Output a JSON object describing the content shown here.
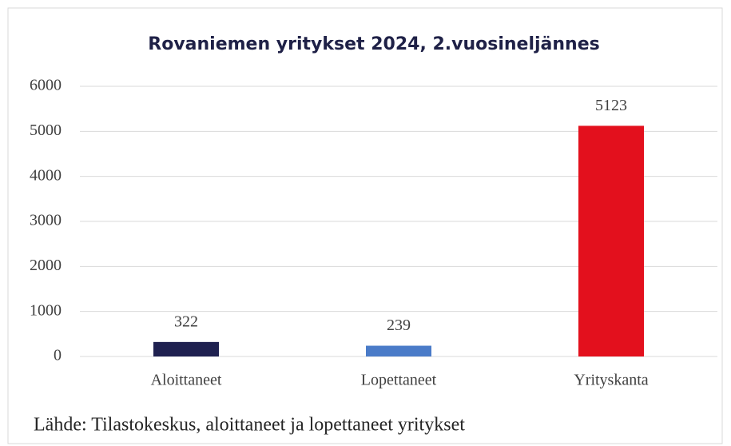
{
  "chart_data": {
    "type": "bar",
    "title": "Rovaniemen yritykset 2024, 2.vuosineljännes",
    "categories": [
      "Aloittaneet",
      "Lopettaneet",
      "Yrityskanta"
    ],
    "values": [
      322,
      239,
      5123
    ],
    "colors": [
      "#1f2150",
      "#4a7bc8",
      "#e3101d"
    ],
    "ylim": [
      0,
      6000
    ],
    "yticks": [
      0,
      1000,
      2000,
      3000,
      4000,
      5000,
      6000
    ],
    "grid": true,
    "source": "Lähde: Tilastokeskus, aloittaneet ja lopettaneet yritykset"
  }
}
